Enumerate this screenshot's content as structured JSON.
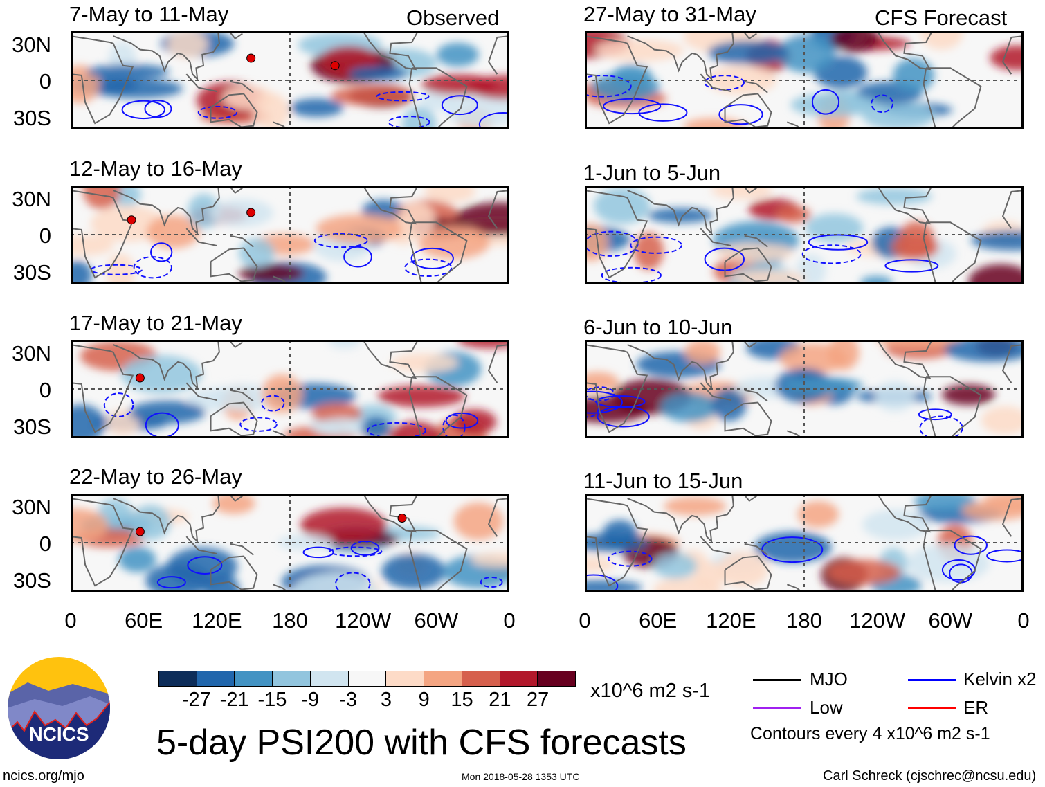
{
  "header": {
    "left_label": "Observed",
    "right_label": "CFS Forecast"
  },
  "panels_left": [
    {
      "title": "7-May to 11-May"
    },
    {
      "title": "12-May to 16-May"
    },
    {
      "title": "17-May to 21-May"
    },
    {
      "title": "22-May to 26-May"
    }
  ],
  "panels_right": [
    {
      "title": "27-May to 31-May"
    },
    {
      "title": "1-Jun to 5-Jun"
    },
    {
      "title": "6-Jun to 10-Jun"
    },
    {
      "title": "11-Jun to 15-Jun"
    }
  ],
  "y_axis": [
    "30N",
    "0",
    "30S"
  ],
  "x_axis": [
    "0",
    "60E",
    "120E",
    "180",
    "120W",
    "60W",
    "0"
  ],
  "colorbar": {
    "colors": [
      "#0d2d5a",
      "#2166ac",
      "#4393c3",
      "#92c5de",
      "#d1e5f0",
      "#f7f7f7",
      "#fddbc7",
      "#f4a582",
      "#d6604d",
      "#b2182b",
      "#67001f"
    ],
    "labels": [
      "-27",
      "-21",
      "-15",
      "-9",
      "-3",
      "3",
      "9",
      "15",
      "21",
      "27"
    ],
    "units": "x10^6 m2 s-1"
  },
  "title": "5-day PSI200 with CFS forecasts",
  "legend": {
    "items": [
      {
        "label": "MJO",
        "color": "#000000"
      },
      {
        "label": "Kelvin x2",
        "color": "#0000ff"
      },
      {
        "label": "Low",
        "color": "#a020f0"
      },
      {
        "label": "ER",
        "color": "#ff0000"
      }
    ],
    "note": "Contours every 4 x10^6 m2 s-1"
  },
  "logo": {
    "text": "NCICS"
  },
  "footer": {
    "url": "ncics.org/mjo",
    "timestamp": "Mon 2018-05-28 1353 UTC",
    "credit": "Carl Schreck (cjschrec@ncsu.edu)"
  }
}
